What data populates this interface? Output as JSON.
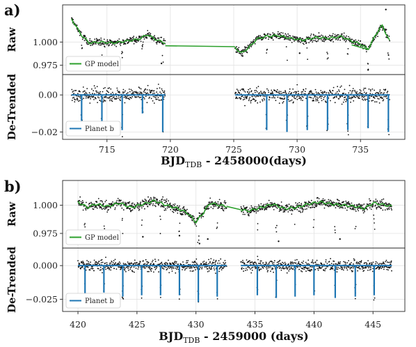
{
  "figure": {
    "panel_a_label": "a)",
    "panel_b_label": "b)"
  },
  "chart_data": [
    {
      "type": "scatter",
      "panel": "a",
      "xlabel_main": "BJD",
      "xlabel_sub": "TDB",
      "xlabel_rest": " - 2458000(days)",
      "xlim": [
        711.5,
        738.5
      ],
      "xticks": [
        715,
        720,
        725,
        730,
        735
      ],
      "grid": true,
      "subplots": [
        {
          "ylabel": "Raw",
          "ylim": [
            0.965,
            1.04
          ],
          "yticks": [
            0.975,
            1.0
          ],
          "ytick_labels": [
            "0.975",
            "1.000"
          ],
          "legend": {
            "label": "GP model",
            "placement": "lower-left",
            "color": "#2ca02c"
          },
          "segments": [
            {
              "x0": 712.2,
              "x1": 719.6,
              "anchors": [
                [
                  712.2,
                  1.025
                ],
                [
                  713.0,
                  1.007
                ],
                [
                  713.6,
                  0.999
                ],
                [
                  714.5,
                  1.0
                ],
                [
                  715.5,
                  0.999
                ],
                [
                  716.5,
                  1.001
                ],
                [
                  717.5,
                  1.003
                ],
                [
                  718.2,
                  1.008
                ],
                [
                  718.8,
                  1.003
                ],
                [
                  719.6,
                  0.999
                ]
              ]
            },
            {
              "x0": 725.1,
              "x1": 737.3,
              "anchors": [
                [
                  725.1,
                  0.994
                ],
                [
                  725.6,
                  0.988
                ],
                [
                  726.2,
                  0.994
                ],
                [
                  726.8,
                  1.003
                ],
                [
                  727.5,
                  1.006
                ],
                [
                  728.5,
                  1.007
                ],
                [
                  729.5,
                  1.004
                ],
                [
                  730.5,
                  1.002
                ],
                [
                  731.5,
                  1.005
                ],
                [
                  732.5,
                  1.004
                ],
                [
                  733.5,
                  1.006
                ],
                [
                  734.3,
                  1.001
                ],
                [
                  735.0,
                  0.998
                ],
                [
                  735.6,
                  0.992
                ],
                [
                  736.2,
                  1.008
                ],
                [
                  736.7,
                  1.018
                ],
                [
                  737.3,
                  1.001
                ]
              ]
            }
          ],
          "model_bridges": [
            [
              [
                719.6,
                0.996
              ],
              [
                725.1,
                0.995
              ]
            ],
            [
              [
                734.3,
                0.997
              ],
              [
                735.6,
                0.992
              ]
            ]
          ],
          "noise": 0.0045,
          "outliers": [
            [
              719.3,
              0.977
            ],
            [
              725.7,
              0.985
            ],
            [
              735.6,
              0.97
            ],
            [
              737.0,
              1.035
            ],
            [
              730.2,
              0.988
            ]
          ],
          "model_color": "#2ca02c"
        },
        {
          "ylabel": "De-Trended",
          "ylim": [
            -0.024,
            0.011
          ],
          "yticks": [
            -0.02,
            0.0
          ],
          "ytick_labels": [
            "−0.02",
            "0.00"
          ],
          "legend": {
            "label": "Planet b",
            "placement": "lower-left",
            "color": "#1f77b4"
          },
          "segments": [
            {
              "x0": 712.2,
              "x1": 719.6
            },
            {
              "x0": 725.1,
              "x1": 737.3
            }
          ],
          "transits": [
            {
              "t": 713.0,
              "depth": 0.014
            },
            {
              "t": 714.6,
              "depth": 0.018
            },
            {
              "t": 716.2,
              "depth": 0.019
            },
            {
              "t": 717.8,
              "depth": 0.01
            },
            {
              "t": 719.4,
              "depth": 0.02
            },
            {
              "t": 727.6,
              "depth": 0.019
            },
            {
              "t": 729.2,
              "depth": 0.02
            },
            {
              "t": 730.8,
              "depth": 0.019
            },
            {
              "t": 732.4,
              "depth": 0.019
            },
            {
              "t": 734.0,
              "depth": 0.019
            },
            {
              "t": 735.6,
              "depth": 0.018
            },
            {
              "t": 737.2,
              "depth": 0.02
            }
          ],
          "noise": 0.0045,
          "model_color": "#1f77b4"
        }
      ]
    },
    {
      "type": "scatter",
      "panel": "b",
      "xlabel_main": "BJD",
      "xlabel_sub": "TDB",
      "xlabel_rest": " - 2459000 (days)",
      "xlim": [
        418.7,
        447.7
      ],
      "xticks": [
        420,
        425,
        430,
        435,
        440,
        445
      ],
      "grid": true,
      "subplots": [
        {
          "ylabel": "Raw",
          "ylim": [
            0.962,
            1.022
          ],
          "yticks": [
            0.975,
            1.0
          ],
          "ytick_labels": [
            "0.975",
            "1.000"
          ],
          "legend": {
            "label": "GP model",
            "placement": "lower-left",
            "color": "#2ca02c"
          },
          "segments": [
            {
              "x0": 420.0,
              "x1": 432.6,
              "anchors": [
                [
                  420.0,
                  1.003
                ],
                [
                  420.8,
                  0.998
                ],
                [
                  421.5,
                  1.001
                ],
                [
                  422.5,
                  0.999
                ],
                [
                  423.5,
                  1.002
                ],
                [
                  424.5,
                  0.998
                ],
                [
                  425.5,
                  1.001
                ],
                [
                  426.5,
                  1.004
                ],
                [
                  427.5,
                  1.0
                ],
                [
                  428.5,
                  0.997
                ],
                [
                  429.3,
                  0.993
                ],
                [
                  430.0,
                  0.985
                ],
                [
                  430.6,
                  0.993
                ],
                [
                  431.2,
                  1.002
                ],
                [
                  432.0,
                  1.0
                ],
                [
                  432.6,
                  0.999
                ]
              ]
            },
            {
              "x0": 433.8,
              "x1": 446.6,
              "anchors": [
                [
                  433.8,
                  0.996
                ],
                [
                  434.5,
                  0.995
                ],
                [
                  435.5,
                  0.998
                ],
                [
                  436.5,
                  1.001
                ],
                [
                  437.5,
                  0.997
                ],
                [
                  438.5,
                  0.998
                ],
                [
                  439.5,
                  1.001
                ],
                [
                  440.5,
                  1.003
                ],
                [
                  441.5,
                  1.001
                ],
                [
                  442.5,
                  1.0
                ],
                [
                  443.5,
                  0.999
                ],
                [
                  444.3,
                  0.997
                ],
                [
                  445.0,
                  1.002
                ],
                [
                  445.6,
                  1.001
                ],
                [
                  446.6,
                  0.999
                ]
              ]
            }
          ],
          "model_bridges": [
            [
              [
                432.6,
                0.999
              ],
              [
                433.8,
                0.996
              ]
            ]
          ],
          "noise": 0.005,
          "outliers": [
            [
              430.3,
              0.966
            ],
            [
              431.0,
              0.97
            ],
            [
              437.0,
              0.968
            ],
            [
              442.2,
              0.97
            ],
            [
              425.5,
              0.972
            ],
            [
              428.6,
              0.973
            ]
          ],
          "model_color": "#2ca02c"
        },
        {
          "ylabel": "De-Trended",
          "ylim": [
            -0.034,
            0.013
          ],
          "yticks": [
            -0.025,
            0.0
          ],
          "ytick_labels": [
            "−0.025",
            "0.000"
          ],
          "legend": {
            "label": "Planet b",
            "placement": "lower-left",
            "color": "#1f77b4"
          },
          "segments": [
            {
              "x0": 420.0,
              "x1": 432.6
            },
            {
              "x0": 433.8,
              "x1": 446.6
            }
          ],
          "transits": [
            {
              "t": 420.6,
              "depth": 0.023
            },
            {
              "t": 422.2,
              "depth": 0.02
            },
            {
              "t": 423.8,
              "depth": 0.023
            },
            {
              "t": 425.4,
              "depth": 0.022
            },
            {
              "t": 427.0,
              "depth": 0.022
            },
            {
              "t": 428.6,
              "depth": 0.022
            },
            {
              "t": 430.2,
              "depth": 0.027
            },
            {
              "t": 431.8,
              "depth": 0.023
            },
            {
              "t": 435.2,
              "depth": 0.022
            },
            {
              "t": 436.8,
              "depth": 0.024
            },
            {
              "t": 438.4,
              "depth": 0.023
            },
            {
              "t": 440.0,
              "depth": 0.022
            },
            {
              "t": 441.8,
              "depth": 0.024
            },
            {
              "t": 443.5,
              "depth": 0.023
            },
            {
              "t": 445.1,
              "depth": 0.022
            }
          ],
          "noise": 0.005,
          "model_color": "#1f77b4"
        }
      ]
    }
  ]
}
